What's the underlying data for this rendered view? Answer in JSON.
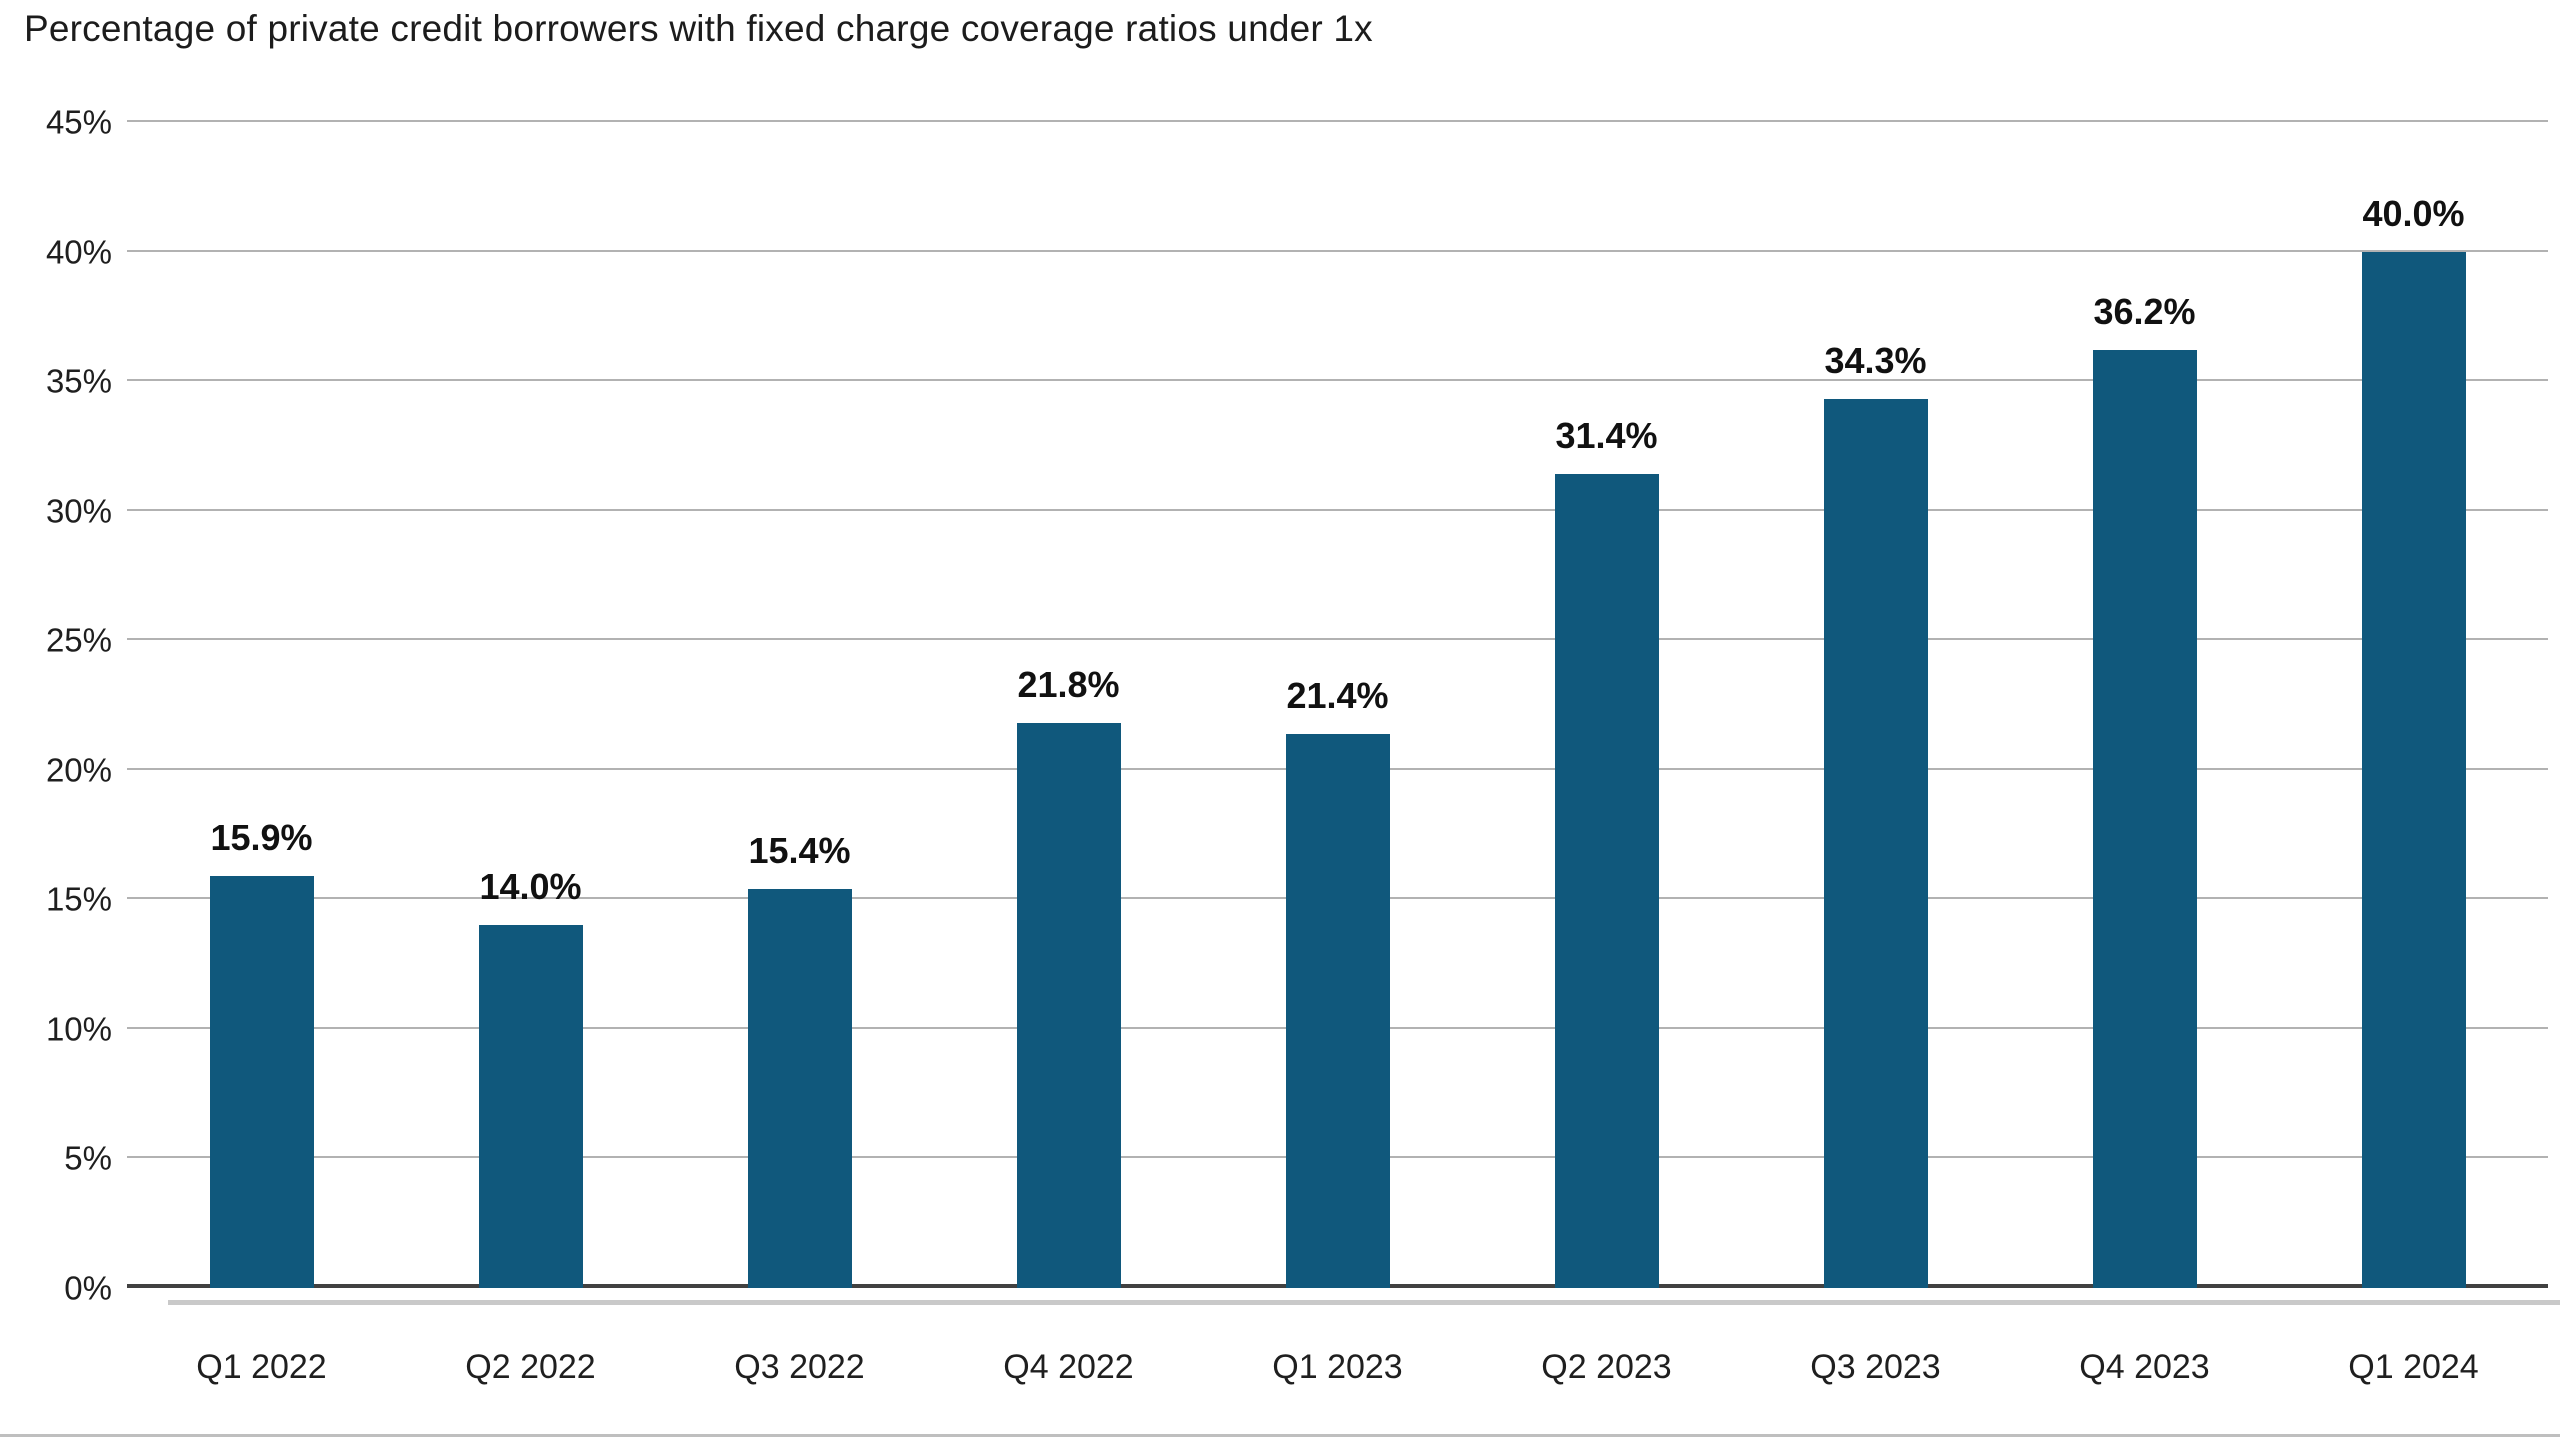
{
  "chart_data": {
    "type": "bar",
    "title": "Percentage of private credit borrowers with fixed charge coverage ratios under 1x",
    "categories": [
      "Q1 2022",
      "Q2 2022",
      "Q3 2022",
      "Q4 2022",
      "Q1 2023",
      "Q2 2023",
      "Q3 2023",
      "Q4 2023",
      "Q1 2024"
    ],
    "values": [
      15.9,
      14.0,
      15.4,
      21.8,
      21.4,
      31.4,
      34.3,
      36.2,
      40.0
    ],
    "value_labels": [
      "15.9%",
      "14.0%",
      "15.4%",
      "21.8%",
      "21.4%",
      "31.4%",
      "34.3%",
      "36.2%",
      "40.0%"
    ],
    "xlabel": "",
    "ylabel": "",
    "ylim": [
      0,
      45
    ],
    "y_tick_step": 5,
    "y_tick_labels": [
      "0%",
      "5%",
      "10%",
      "15%",
      "20%",
      "25%",
      "30%",
      "35%",
      "40%",
      "45%"
    ],
    "grid": true,
    "legend": "none",
    "bar_color": "#10587C",
    "value_label_color": "#111111",
    "gridline_color": "#b2b2b2",
    "axis_line_color": "#414141"
  }
}
